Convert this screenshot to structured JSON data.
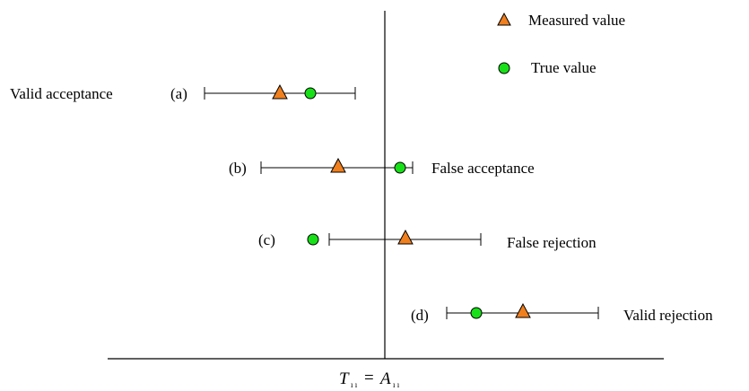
{
  "legend": {
    "measured_label": "Measured value",
    "true_label": "True value",
    "colors": {
      "measured": "#F07F1E",
      "true": "#18E018"
    }
  },
  "cases": [
    {
      "id": "a",
      "tag": "(a)",
      "outcome": "Valid acceptance"
    },
    {
      "id": "b",
      "tag": "(b)",
      "outcome": "False acceptance"
    },
    {
      "id": "c",
      "tag": "(c)",
      "outcome": "False rejection"
    },
    {
      "id": "d",
      "tag": "(d)",
      "outcome": "Valid rejection"
    }
  ],
  "limit_label": {
    "t": "T",
    "t_sub": "ı ı",
    "eq": "=",
    "a": "A",
    "a_sub": "ı ı"
  }
}
